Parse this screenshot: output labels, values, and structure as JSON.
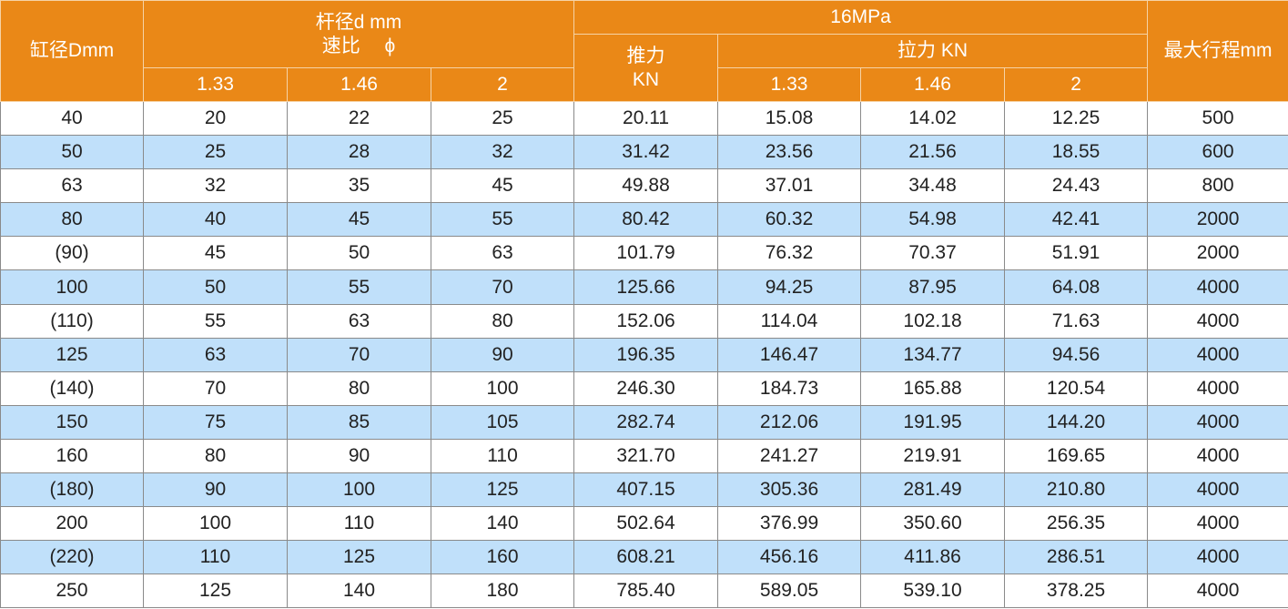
{
  "colors": {
    "header": "#ea8817",
    "stripe": "#c0e0fa"
  },
  "header": {
    "bore": "缸径Dmm",
    "rod_line1": "杆径d mm",
    "rod_line2": "速比　 ϕ",
    "pressure": "16MPa",
    "push_line1": "推力",
    "push_line2": "KN",
    "pull": "拉力 KN",
    "stroke": "最大行程mm",
    "ratios": [
      "1.33",
      "1.46",
      "2"
    ]
  },
  "rows": [
    [
      "40",
      "20",
      "22",
      "25",
      "20.11",
      "15.08",
      "14.02",
      "12.25",
      "500"
    ],
    [
      "50",
      "25",
      "28",
      "32",
      "31.42",
      "23.56",
      "21.56",
      "18.55",
      "600"
    ],
    [
      "63",
      "32",
      "35",
      "45",
      "49.88",
      "37.01",
      "34.48",
      "24.43",
      "800"
    ],
    [
      "80",
      "40",
      "45",
      "55",
      "80.42",
      "60.32",
      "54.98",
      "42.41",
      "2000"
    ],
    [
      "(90)",
      "45",
      "50",
      "63",
      "101.79",
      "76.32",
      "70.37",
      "51.91",
      "2000"
    ],
    [
      "100",
      "50",
      "55",
      "70",
      "125.66",
      "94.25",
      "87.95",
      "64.08",
      "4000"
    ],
    [
      "(110)",
      "55",
      "63",
      "80",
      "152.06",
      "114.04",
      "102.18",
      "71.63",
      "4000"
    ],
    [
      "125",
      "63",
      "70",
      "90",
      "196.35",
      "146.47",
      "134.77",
      "94.56",
      "4000"
    ],
    [
      "(140)",
      "70",
      "80",
      "100",
      "246.30",
      "184.73",
      "165.88",
      "120.54",
      "4000"
    ],
    [
      "150",
      "75",
      "85",
      "105",
      "282.74",
      "212.06",
      "191.95",
      "144.20",
      "4000"
    ],
    [
      "160",
      "80",
      "90",
      "110",
      "321.70",
      "241.27",
      "219.91",
      "169.65",
      "4000"
    ],
    [
      "(180)",
      "90",
      "100",
      "125",
      "407.15",
      "305.36",
      "281.49",
      "210.80",
      "4000"
    ],
    [
      "200",
      "100",
      "110",
      "140",
      "502.64",
      "376.99",
      "350.60",
      "256.35",
      "4000"
    ],
    [
      "(220)",
      "110",
      "125",
      "160",
      "608.21",
      "456.16",
      "411.86",
      "286.51",
      "4000"
    ],
    [
      "250",
      "125",
      "140",
      "180",
      "785.40",
      "589.05",
      "539.10",
      "378.25",
      "4000"
    ]
  ]
}
